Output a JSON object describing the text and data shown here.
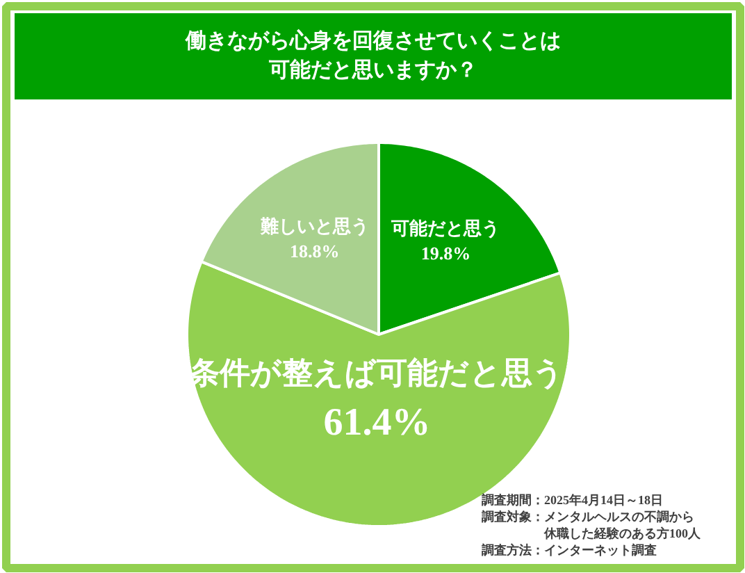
{
  "chart_data": {
    "type": "pie",
    "title": "働きながら心身を回復させていくことは可能だと思いますか？",
    "categories": [
      "可能だと思う",
      "条件が整えば可能だと思う",
      "難しいと思う"
    ],
    "values": [
      19.8,
      61.4,
      18.8
    ],
    "value_labels": [
      "19.8%",
      "61.4%",
      "18.8%"
    ],
    "colors": [
      "#00a000",
      "#92d050",
      "#a9d18e"
    ],
    "annotations": [
      "調査期間：2025年4月14日～18日",
      "調査対象：メンタルヘルスの不調から休職した経験のある方100人",
      "調査方法：インターネット調査"
    ]
  }
}
